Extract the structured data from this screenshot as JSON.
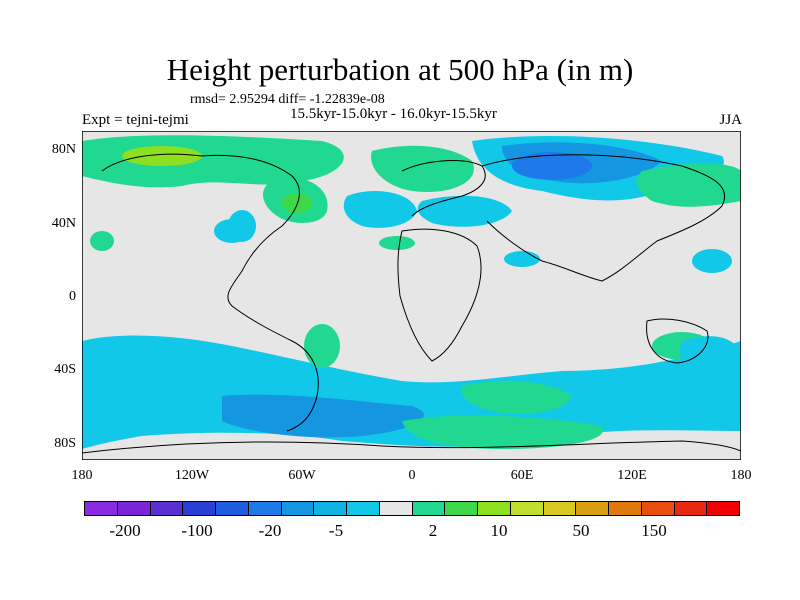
{
  "title": "Height perturbation at 500 hPa (in m)",
  "stats": "rmsd= 2.95294 diff= -1.22839e-08",
  "subtitle": "15.5kyr-15.0kyr - 16.0kyr-15.5kyr",
  "expt": "Expt = tejni-tejmi",
  "season": "JJA",
  "lat_ticks": [
    "80N",
    "40N",
    "0",
    "40S",
    "80S"
  ],
  "lon_ticks": [
    "180",
    "120W",
    "60W",
    "0",
    "60E",
    "120E",
    "180"
  ],
  "colorbar": {
    "colors": [
      "#8a2be2",
      "#7b24d8",
      "#5c2fd3",
      "#2a3fd6",
      "#1f5ce0",
      "#1e7ae8",
      "#1496e0",
      "#0fb2e0",
      "#12c8e8",
      "#e6e6e6",
      "#20d890",
      "#3cd84a",
      "#8ce020",
      "#c0e030",
      "#d8c820",
      "#d8a010",
      "#e07810",
      "#e84e10",
      "#e82810",
      "#f00000"
    ],
    "labels": [
      "-200",
      "-100",
      "-20",
      "-5",
      "2",
      "10",
      "50",
      "150"
    ]
  },
  "colors": {
    "land_outline": "#000000",
    "background": "#e6e6e6"
  }
}
